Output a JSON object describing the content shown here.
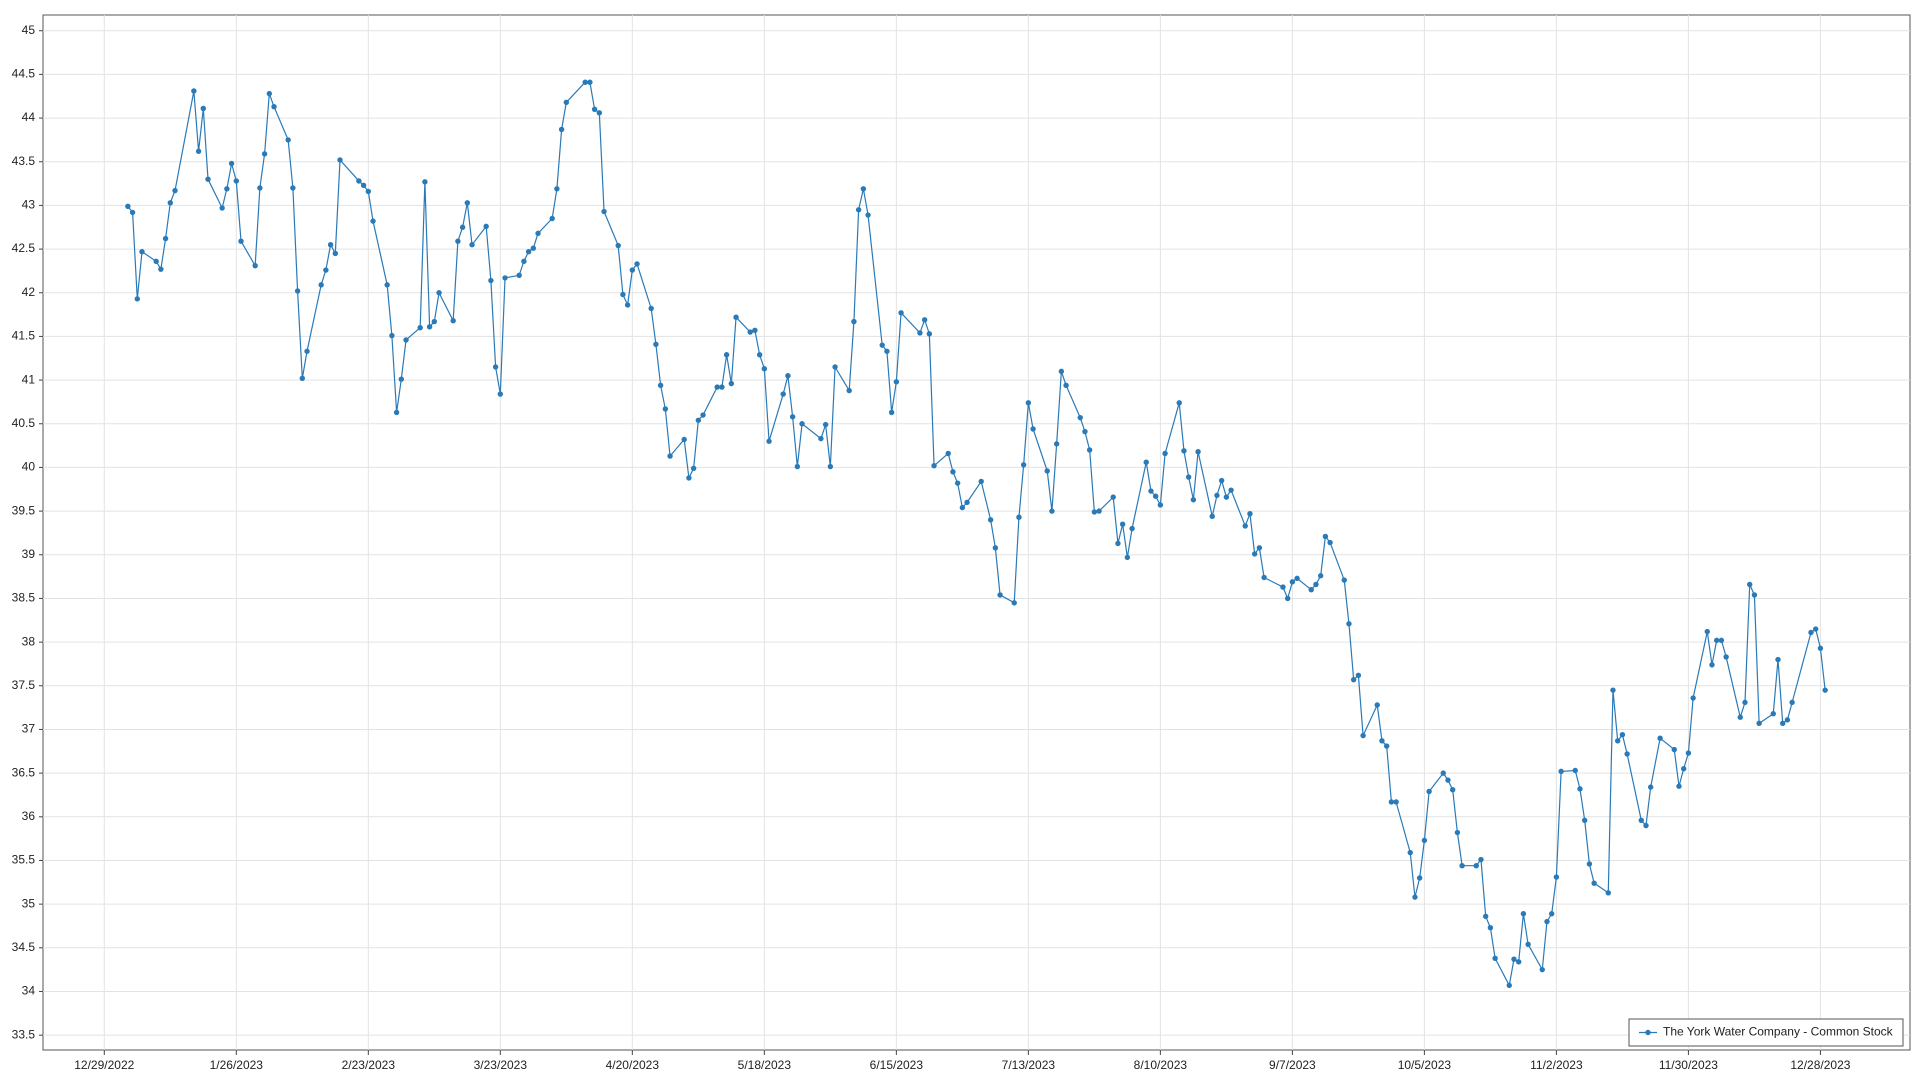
{
  "chart_data": {
    "type": "line",
    "x": [
      "2023-01-03",
      "2023-01-04",
      "2023-01-05",
      "2023-01-06",
      "2023-01-09",
      "2023-01-10",
      "2023-01-11",
      "2023-01-12",
      "2023-01-13",
      "2023-01-17",
      "2023-01-18",
      "2023-01-19",
      "2023-01-20",
      "2023-01-23",
      "2023-01-24",
      "2023-01-25",
      "2023-01-26",
      "2023-01-27",
      "2023-01-30",
      "2023-01-31",
      "2023-02-01",
      "2023-02-02",
      "2023-02-03",
      "2023-02-06",
      "2023-02-07",
      "2023-02-08",
      "2023-02-09",
      "2023-02-10",
      "2023-02-13",
      "2023-02-14",
      "2023-02-15",
      "2023-02-16",
      "2023-02-17",
      "2023-02-21",
      "2023-02-22",
      "2023-02-23",
      "2023-02-24",
      "2023-02-27",
      "2023-02-28",
      "2023-03-01",
      "2023-03-02",
      "2023-03-03",
      "2023-03-06",
      "2023-03-07",
      "2023-03-08",
      "2023-03-09",
      "2023-03-10",
      "2023-03-13",
      "2023-03-14",
      "2023-03-15",
      "2023-03-16",
      "2023-03-17",
      "2023-03-20",
      "2023-03-21",
      "2023-03-22",
      "2023-03-23",
      "2023-03-24",
      "2023-03-27",
      "2023-03-28",
      "2023-03-29",
      "2023-03-30",
      "2023-03-31",
      "2023-04-03",
      "2023-04-04",
      "2023-04-05",
      "2023-04-06",
      "2023-04-10",
      "2023-04-11",
      "2023-04-12",
      "2023-04-13",
      "2023-04-14",
      "2023-04-17",
      "2023-04-18",
      "2023-04-19",
      "2023-04-20",
      "2023-04-21",
      "2023-04-24",
      "2023-04-25",
      "2023-04-26",
      "2023-04-27",
      "2023-04-28",
      "2023-05-01",
      "2023-05-02",
      "2023-05-03",
      "2023-05-04",
      "2023-05-05",
      "2023-05-08",
      "2023-05-09",
      "2023-05-10",
      "2023-05-11",
      "2023-05-12",
      "2023-05-15",
      "2023-05-16",
      "2023-05-17",
      "2023-05-18",
      "2023-05-19",
      "2023-05-22",
      "2023-05-23",
      "2023-05-24",
      "2023-05-25",
      "2023-05-26",
      "2023-05-30",
      "2023-05-31",
      "2023-06-01",
      "2023-06-02",
      "2023-06-05",
      "2023-06-06",
      "2023-06-07",
      "2023-06-08",
      "2023-06-09",
      "2023-06-12",
      "2023-06-13",
      "2023-06-14",
      "2023-06-15",
      "2023-06-16",
      "2023-06-20",
      "2023-06-21",
      "2023-06-22",
      "2023-06-23",
      "2023-06-26",
      "2023-06-27",
      "2023-06-28",
      "2023-06-29",
      "2023-06-30",
      "2023-07-03",
      "2023-07-05",
      "2023-07-06",
      "2023-07-07",
      "2023-07-10",
      "2023-07-11",
      "2023-07-12",
      "2023-07-13",
      "2023-07-14",
      "2023-07-17",
      "2023-07-18",
      "2023-07-19",
      "2023-07-20",
      "2023-07-21",
      "2023-07-24",
      "2023-07-25",
      "2023-07-26",
      "2023-07-27",
      "2023-07-28",
      "2023-07-31",
      "2023-08-01",
      "2023-08-02",
      "2023-08-03",
      "2023-08-04",
      "2023-08-07",
      "2023-08-08",
      "2023-08-09",
      "2023-08-10",
      "2023-08-11",
      "2023-08-14",
      "2023-08-15",
      "2023-08-16",
      "2023-08-17",
      "2023-08-18",
      "2023-08-21",
      "2023-08-22",
      "2023-08-23",
      "2023-08-24",
      "2023-08-25",
      "2023-08-28",
      "2023-08-29",
      "2023-08-30",
      "2023-08-31",
      "2023-09-01",
      "2023-09-05",
      "2023-09-06",
      "2023-09-07",
      "2023-09-08",
      "2023-09-11",
      "2023-09-12",
      "2023-09-13",
      "2023-09-14",
      "2023-09-15",
      "2023-09-18",
      "2023-09-19",
      "2023-09-20",
      "2023-09-21",
      "2023-09-22",
      "2023-09-25",
      "2023-09-26",
      "2023-09-27",
      "2023-09-28",
      "2023-09-29",
      "2023-10-02",
      "2023-10-03",
      "2023-10-04",
      "2023-10-05",
      "2023-10-06",
      "2023-10-09",
      "2023-10-10",
      "2023-10-11",
      "2023-10-12",
      "2023-10-13",
      "2023-10-16",
      "2023-10-17",
      "2023-10-18",
      "2023-10-19",
      "2023-10-20",
      "2023-10-23",
      "2023-10-24",
      "2023-10-25",
      "2023-10-26",
      "2023-10-27",
      "2023-10-30",
      "2023-10-31",
      "2023-11-01",
      "2023-11-02",
      "2023-11-03",
      "2023-11-06",
      "2023-11-07",
      "2023-11-08",
      "2023-11-09",
      "2023-11-10",
      "2023-11-13",
      "2023-11-14",
      "2023-11-15",
      "2023-11-16",
      "2023-11-17",
      "2023-11-20",
      "2023-11-21",
      "2023-11-22",
      "2023-11-24",
      "2023-11-27",
      "2023-11-28",
      "2023-11-29",
      "2023-11-30",
      "2023-12-01",
      "2023-12-04",
      "2023-12-05",
      "2023-12-06",
      "2023-12-07",
      "2023-12-08",
      "2023-12-11",
      "2023-12-12",
      "2023-12-13",
      "2023-12-14",
      "2023-12-15",
      "2023-12-18",
      "2023-12-19",
      "2023-12-20",
      "2023-12-21",
      "2023-12-22",
      "2023-12-26",
      "2023-12-27",
      "2023-12-28",
      "2023-12-29"
    ],
    "series": [
      {
        "name": "The York Water Company - Common Stock",
        "color": "#2a7ab8",
        "values": [
          42.99,
          42.92,
          41.93,
          42.47,
          42.36,
          42.27,
          42.62,
          43.03,
          43.17,
          44.31,
          43.62,
          44.11,
          43.3,
          42.97,
          43.19,
          43.48,
          43.28,
          42.59,
          42.31,
          43.2,
          43.59,
          44.28,
          44.13,
          43.75,
          43.2,
          42.02,
          41.02,
          41.33,
          42.09,
          42.26,
          42.55,
          42.45,
          43.52,
          43.28,
          43.23,
          43.16,
          42.82,
          42.09,
          41.51,
          40.63,
          41.01,
          41.46,
          41.6,
          43.27,
          41.61,
          41.67,
          42.0,
          41.68,
          42.59,
          42.75,
          43.03,
          42.55,
          42.76,
          42.14,
          41.15,
          40.84,
          42.17,
          42.2,
          42.36,
          42.47,
          42.51,
          42.68,
          42.85,
          43.19,
          43.87,
          44.18,
          44.41,
          44.41,
          44.1,
          44.06,
          42.93,
          42.54,
          41.98,
          41.86,
          42.26,
          42.33,
          41.82,
          41.41,
          40.94,
          40.67,
          40.13,
          40.32,
          39.88,
          39.99,
          40.54,
          40.6,
          40.92,
          40.92,
          41.29,
          40.96,
          41.72,
          41.55,
          41.57,
          41.29,
          41.13,
          40.3,
          40.84,
          41.05,
          40.58,
          40.01,
          40.5,
          40.33,
          40.49,
          40.01,
          41.15,
          40.88,
          41.67,
          42.95,
          43.19,
          42.89,
          41.4,
          41.33,
          40.63,
          40.98,
          41.77,
          41.54,
          41.69,
          41.53,
          40.02,
          40.16,
          39.95,
          39.82,
          39.54,
          39.6,
          39.84,
          39.4,
          39.08,
          38.54,
          38.45,
          39.43,
          40.03,
          40.74,
          40.44,
          39.96,
          39.5,
          40.27,
          41.1,
          40.94,
          40.57,
          40.41,
          40.2,
          39.49,
          39.5,
          39.66,
          39.13,
          39.35,
          38.97,
          39.3,
          40.06,
          39.73,
          39.67,
          39.57,
          40.16,
          40.74,
          40.19,
          39.89,
          39.63,
          40.18,
          39.44,
          39.68,
          39.85,
          39.66,
          39.74,
          39.33,
          39.47,
          39.01,
          39.08,
          38.74,
          38.63,
          38.5,
          38.69,
          38.73,
          38.6,
          38.66,
          38.76,
          39.21,
          39.14,
          38.71,
          38.21,
          37.57,
          37.62,
          36.93,
          37.28,
          36.87,
          36.81,
          36.17,
          36.17,
          35.59,
          35.08,
          35.3,
          35.73,
          36.29,
          36.5,
          36.42,
          36.31,
          35.82,
          35.44,
          35.44,
          35.51,
          34.86,
          34.73,
          34.38,
          34.07,
          34.37,
          34.34,
          34.89,
          34.54,
          34.25,
          34.8,
          34.89,
          35.31,
          36.52,
          36.53,
          36.32,
          35.96,
          35.46,
          35.24,
          35.13,
          37.45,
          36.87,
          36.94,
          36.72,
          35.96,
          35.9,
          36.34,
          36.9,
          36.77,
          36.35,
          36.55,
          36.73,
          37.36,
          38.12,
          37.74,
          38.02,
          38.02,
          37.83,
          37.14,
          37.31,
          38.66,
          38.54,
          37.07,
          37.18,
          37.8,
          37.07,
          37.11,
          37.31,
          38.11,
          38.15,
          37.93,
          37.45
        ]
      }
    ],
    "xlim": [
      "2022-12-16",
      "2024-01-16"
    ],
    "xticks": [
      {
        "value": "2022-12-29",
        "label": "12/29/2022"
      },
      {
        "value": "2023-01-26",
        "label": "1/26/2023"
      },
      {
        "value": "2023-02-23",
        "label": "2/23/2023"
      },
      {
        "value": "2023-03-23",
        "label": "3/23/2023"
      },
      {
        "value": "2023-04-20",
        "label": "4/20/2023"
      },
      {
        "value": "2023-05-18",
        "label": "5/18/2023"
      },
      {
        "value": "2023-06-15",
        "label": "6/15/2023"
      },
      {
        "value": "2023-07-13",
        "label": "7/13/2023"
      },
      {
        "value": "2023-08-10",
        "label": "8/10/2023"
      },
      {
        "value": "2023-09-07",
        "label": "9/7/2023"
      },
      {
        "value": "2023-10-05",
        "label": "10/5/2023"
      },
      {
        "value": "2023-11-02",
        "label": "11/2/2023"
      },
      {
        "value": "2023-11-30",
        "label": "11/30/2023"
      },
      {
        "value": "2023-12-28",
        "label": "12/28/2023"
      }
    ],
    "ylim": [
      33.33,
      45.18
    ],
    "yticks": [
      33.5,
      34,
      34.5,
      35,
      35.5,
      36,
      36.5,
      37,
      37.5,
      38,
      38.5,
      39,
      39.5,
      40,
      40.5,
      41,
      41.5,
      42,
      42.5,
      43,
      43.5,
      44,
      44.5,
      45
    ],
    "grid": true,
    "legend": "bottom-right"
  }
}
